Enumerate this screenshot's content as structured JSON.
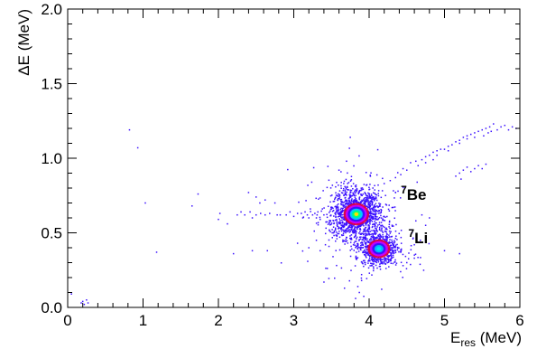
{
  "chart_data": {
    "type": "scatter",
    "title": "",
    "xlabel": {
      "main": "E",
      "sub": "res",
      "unit": " (MeV)"
    },
    "ylabel": "ΔE (MeV)",
    "xlim": [
      0,
      6
    ],
    "ylim": [
      0,
      2
    ],
    "x_ticks": [
      0,
      1,
      2,
      3,
      4,
      5,
      6
    ],
    "y_ticks": [
      0.0,
      0.5,
      1.0,
      1.5,
      2.0
    ],
    "x_tick_labels": [
      "0",
      "1",
      "2",
      "3",
      "4",
      "5",
      "6"
    ],
    "y_tick_labels": [
      "0.0",
      "0.5",
      "1.0",
      "1.5",
      "2.0"
    ],
    "grid": false,
    "point_color": "#3a10ff",
    "annotations": [
      {
        "sup": "7",
        "text": "Be",
        "x": 4.42,
        "y": 0.72
      },
      {
        "sup": "7",
        "text": "Li",
        "x": 4.52,
        "y": 0.43
      }
    ],
    "clusters": [
      {
        "name": "7Be",
        "center": [
          3.83,
          0.625
        ],
        "sx": 0.16,
        "sy": 0.085,
        "count": 1400
      },
      {
        "name": "7Li",
        "center": [
          4.13,
          0.395
        ],
        "sx": 0.12,
        "sy": 0.055,
        "count": 750
      }
    ],
    "hotspots": [
      {
        "x": 3.83,
        "y": 0.625,
        "rx": 0.17,
        "ry": 0.075,
        "rings": [
          "#e8003a",
          "#c400ff",
          "#3a10ff",
          "#00c8ff",
          "#00ff80",
          "#ffe000"
        ]
      },
      {
        "x": 4.13,
        "y": 0.393,
        "rx": 0.15,
        "ry": 0.063,
        "rings": [
          "#e8003a",
          "#c400ff",
          "#3a10ff",
          "#00b4ff",
          "#00e0ff"
        ]
      }
    ],
    "band_points": [
      [
        0.82,
        1.19
      ],
      [
        0.93,
        1.07
      ],
      [
        1.03,
        0.7
      ],
      [
        1.18,
        0.37
      ],
      [
        1.65,
        0.68
      ],
      [
        1.73,
        0.76
      ],
      [
        2.0,
        0.59
      ],
      [
        2.02,
        0.63
      ],
      [
        2.12,
        0.56
      ],
      [
        2.25,
        0.62
      ],
      [
        2.3,
        0.64
      ],
      [
        2.35,
        0.62
      ],
      [
        2.42,
        0.64
      ],
      [
        2.45,
        0.6
      ],
      [
        2.5,
        0.62
      ],
      [
        2.56,
        0.63
      ],
      [
        2.62,
        0.62
      ],
      [
        2.68,
        0.63
      ],
      [
        2.75,
        0.7
      ],
      [
        2.78,
        0.62
      ],
      [
        2.82,
        0.62
      ],
      [
        2.4,
        0.77
      ],
      [
        2.5,
        0.74
      ],
      [
        2.55,
        0.7
      ],
      [
        2.62,
        0.72
      ],
      [
        2.2,
        0.36
      ],
      [
        2.45,
        0.38
      ],
      [
        2.65,
        0.38
      ],
      [
        2.9,
        0.62
      ],
      [
        2.95,
        0.64
      ],
      [
        3.0,
        0.61
      ],
      [
        3.05,
        0.63
      ],
      [
        3.1,
        0.63
      ],
      [
        3.12,
        0.6
      ],
      [
        3.15,
        0.64
      ],
      [
        3.18,
        0.62
      ],
      [
        3.2,
        0.6
      ],
      [
        3.22,
        0.66
      ],
      [
        3.25,
        0.62
      ],
      [
        3.28,
        0.63
      ],
      [
        3.3,
        0.6
      ],
      [
        3.32,
        0.64
      ],
      [
        3.35,
        0.59
      ],
      [
        3.38,
        0.66
      ],
      [
        3.4,
        0.62
      ],
      [
        3.05,
        0.43
      ],
      [
        3.2,
        0.4
      ],
      [
        3.3,
        0.45
      ],
      [
        3.35,
        0.38
      ],
      [
        3.42,
        0.42
      ],
      [
        0.2,
        0.04
      ],
      [
        0.22,
        0.02
      ],
      [
        0.25,
        0.05
      ],
      [
        0.18,
        0.03
      ],
      [
        0.05,
        0.09
      ],
      [
        0.27,
        0.03
      ],
      [
        4.45,
        0.93
      ],
      [
        4.55,
        0.97
      ],
      [
        4.62,
        0.98
      ],
      [
        4.7,
        0.99
      ],
      [
        4.75,
        1.01
      ],
      [
        4.8,
        1.02
      ],
      [
        4.85,
        1.04
      ],
      [
        4.9,
        1.05
      ],
      [
        4.95,
        1.06
      ],
      [
        5.0,
        1.06
      ],
      [
        5.05,
        1.08
      ],
      [
        5.1,
        1.09
      ],
      [
        5.15,
        1.11
      ],
      [
        5.2,
        1.12
      ],
      [
        5.25,
        1.14
      ],
      [
        5.3,
        1.15
      ],
      [
        5.35,
        1.16
      ],
      [
        5.4,
        1.17
      ],
      [
        5.45,
        1.18
      ],
      [
        5.5,
        1.19
      ],
      [
        5.55,
        1.2
      ],
      [
        5.6,
        1.21
      ],
      [
        5.65,
        1.23
      ],
      [
        5.7,
        1.19
      ],
      [
        5.75,
        1.21
      ],
      [
        5.8,
        1.22
      ],
      [
        5.85,
        1.19
      ],
      [
        5.9,
        1.21
      ],
      [
        5.95,
        1.2
      ],
      [
        5.58,
        1.17
      ],
      [
        5.52,
        1.15
      ],
      [
        5.62,
        1.18
      ],
      [
        5.4,
        1.14
      ],
      [
        5.3,
        1.13
      ],
      [
        5.2,
        1.1
      ],
      [
        5.05,
        1.05
      ],
      [
        4.9,
        1.02
      ],
      [
        4.85,
        0.99
      ],
      [
        4.75,
        0.97
      ],
      [
        4.65,
        0.95
      ],
      [
        4.5,
        0.92
      ],
      [
        4.42,
        0.89
      ],
      [
        4.35,
        0.87
      ],
      [
        4.28,
        0.85
      ],
      [
        4.2,
        0.83
      ],
      [
        4.12,
        0.82
      ],
      [
        4.05,
        0.8
      ],
      [
        4.0,
        0.79
      ],
      [
        5.25,
        0.92
      ],
      [
        5.3,
        0.94
      ],
      [
        5.35,
        0.91
      ],
      [
        5.4,
        0.93
      ],
      [
        5.45,
        0.95
      ],
      [
        5.5,
        0.93
      ],
      [
        5.55,
        0.96
      ],
      [
        5.2,
        0.9
      ],
      [
        5.15,
        0.88
      ],
      [
        5.22,
        0.86
      ],
      [
        4.62,
        0.58
      ],
      [
        4.7,
        0.62
      ],
      [
        4.55,
        0.52
      ],
      [
        4.68,
        0.45
      ],
      [
        4.6,
        0.42
      ],
      [
        4.75,
        0.55
      ],
      [
        4.8,
        0.6
      ],
      [
        4.5,
        0.3
      ],
      [
        4.6,
        0.33
      ],
      [
        4.45,
        0.28
      ],
      [
        5.0,
        0.38
      ],
      [
        5.2,
        0.36
      ],
      [
        3.95,
        0.3
      ],
      [
        3.9,
        0.22
      ],
      [
        3.85,
        0.14
      ],
      [
        3.82,
        0.06
      ],
      [
        3.87,
        0.1
      ],
      [
        3.9,
        0.18
      ],
      [
        3.75,
        1.14
      ],
      [
        3.7,
        0.98
      ],
      [
        3.6,
        0.92
      ]
    ]
  }
}
